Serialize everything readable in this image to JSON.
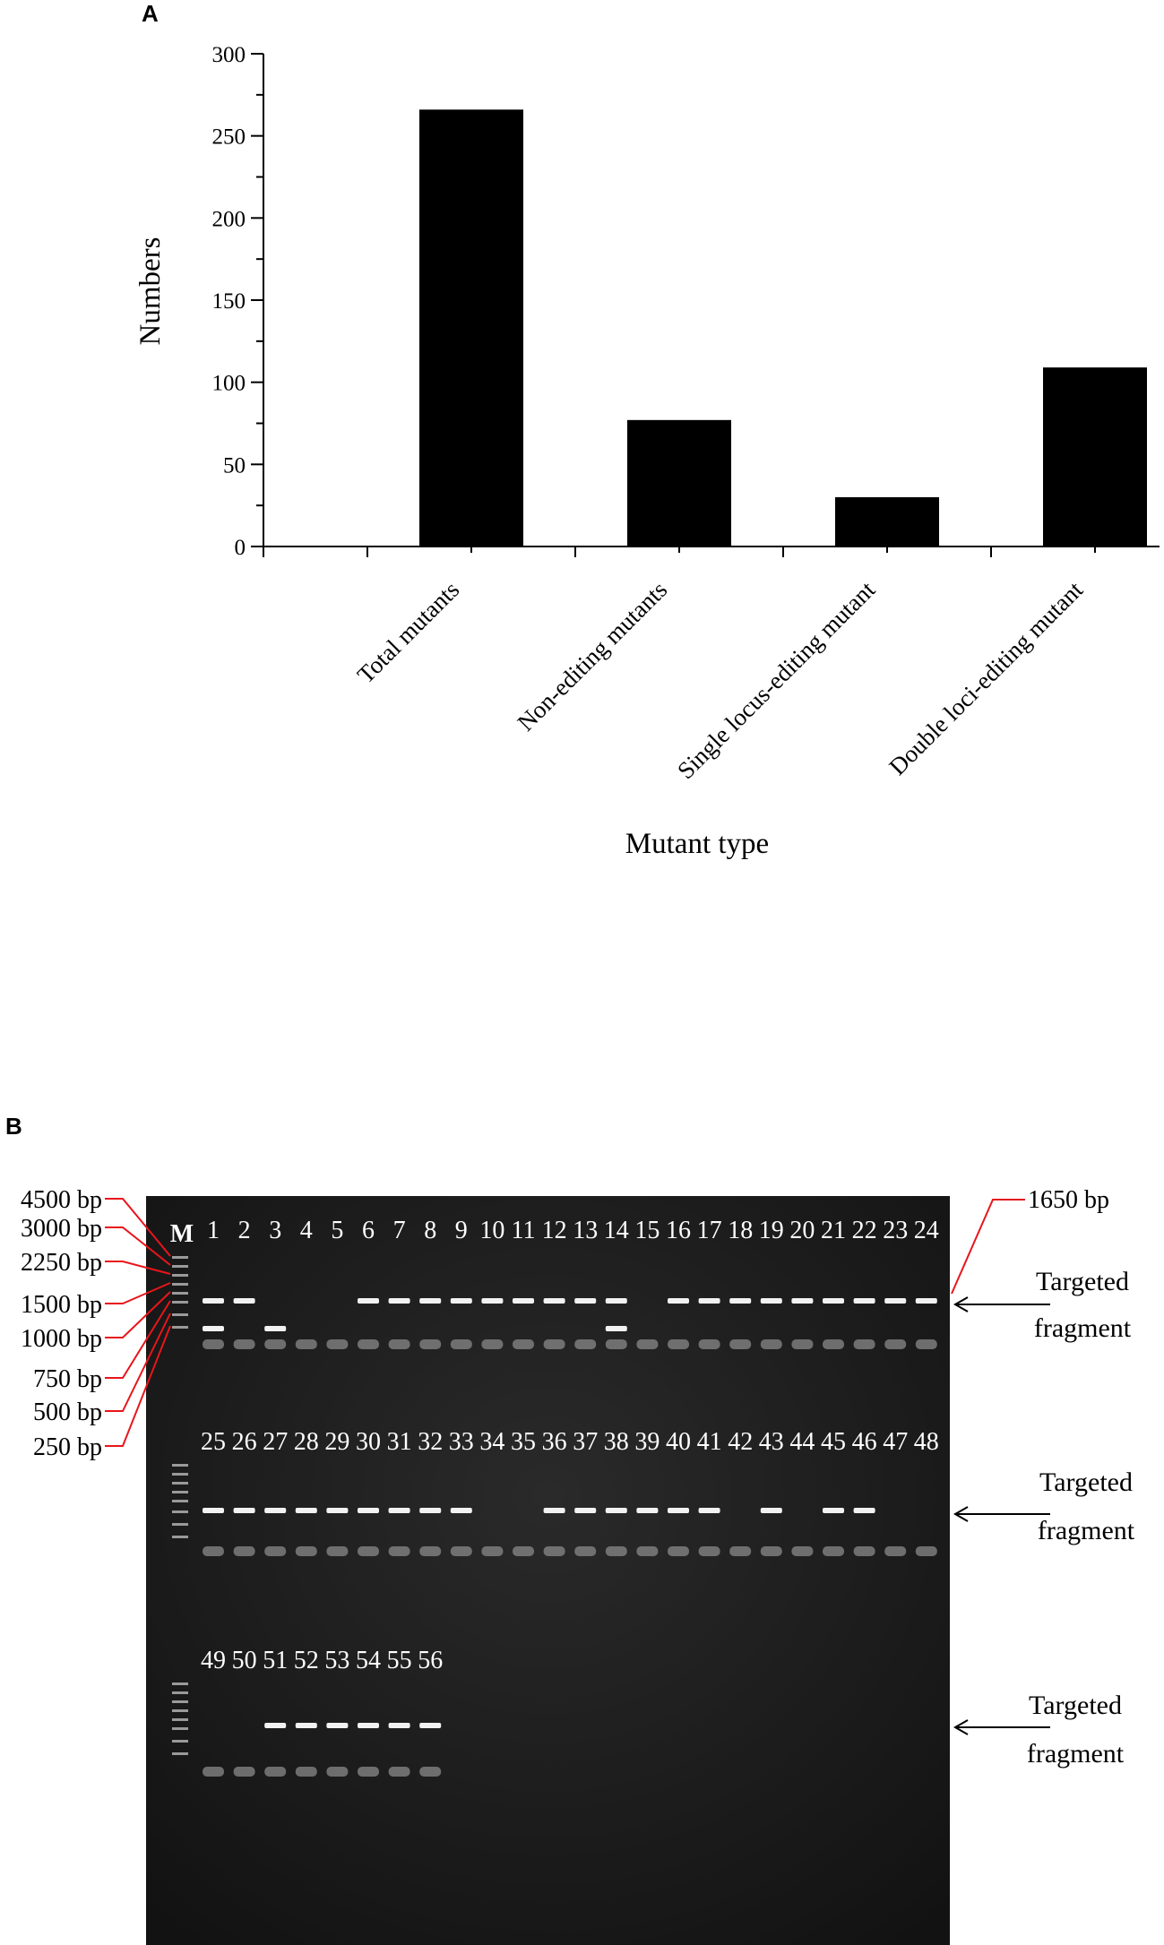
{
  "chart_data": {
    "type": "bar",
    "panel_label": "A",
    "categories": [
      "Total mutants",
      "Non-editing mutants",
      "Single locus-editing mutant",
      "Double loci-editing mutant"
    ],
    "values": [
      266,
      77,
      30,
      109
    ],
    "xlabel": "Mutant type",
    "ylabel": "Numbers",
    "ylim": [
      0,
      300
    ],
    "yticks": [
      0,
      50,
      100,
      150,
      200,
      250,
      300
    ],
    "bar_color": "#000000",
    "grid": false
  },
  "gel": {
    "panel_label": "B",
    "marker_lane_label": "M",
    "ladder": [
      "4500 bp",
      "3000 bp",
      "2250 bp",
      "1500 bp",
      "1000 bp",
      "750 bp",
      "500 bp",
      "250 bp"
    ],
    "target_size_label": "1650 bp",
    "arrow_label_line1": "Targeted",
    "arrow_label_line2": "fragment",
    "rows": [
      {
        "lanes": [
          "1",
          "2",
          "3",
          "4",
          "5",
          "6",
          "7",
          "8",
          "9",
          "10",
          "11",
          "12",
          "13",
          "14",
          "15",
          "16",
          "17",
          "18",
          "19",
          "20",
          "21",
          "22",
          "23",
          "24"
        ]
      },
      {
        "lanes": [
          "25",
          "26",
          "27",
          "28",
          "29",
          "30",
          "31",
          "32",
          "33",
          "34",
          "35",
          "36",
          "37",
          "38",
          "39",
          "40",
          "41",
          "42",
          "43",
          "44",
          "45",
          "46",
          "47",
          "48"
        ]
      },
      {
        "lanes": [
          "49",
          "50",
          "51",
          "52",
          "53",
          "54",
          "55",
          "56"
        ]
      }
    ],
    "line_color": "#e8151b"
  }
}
